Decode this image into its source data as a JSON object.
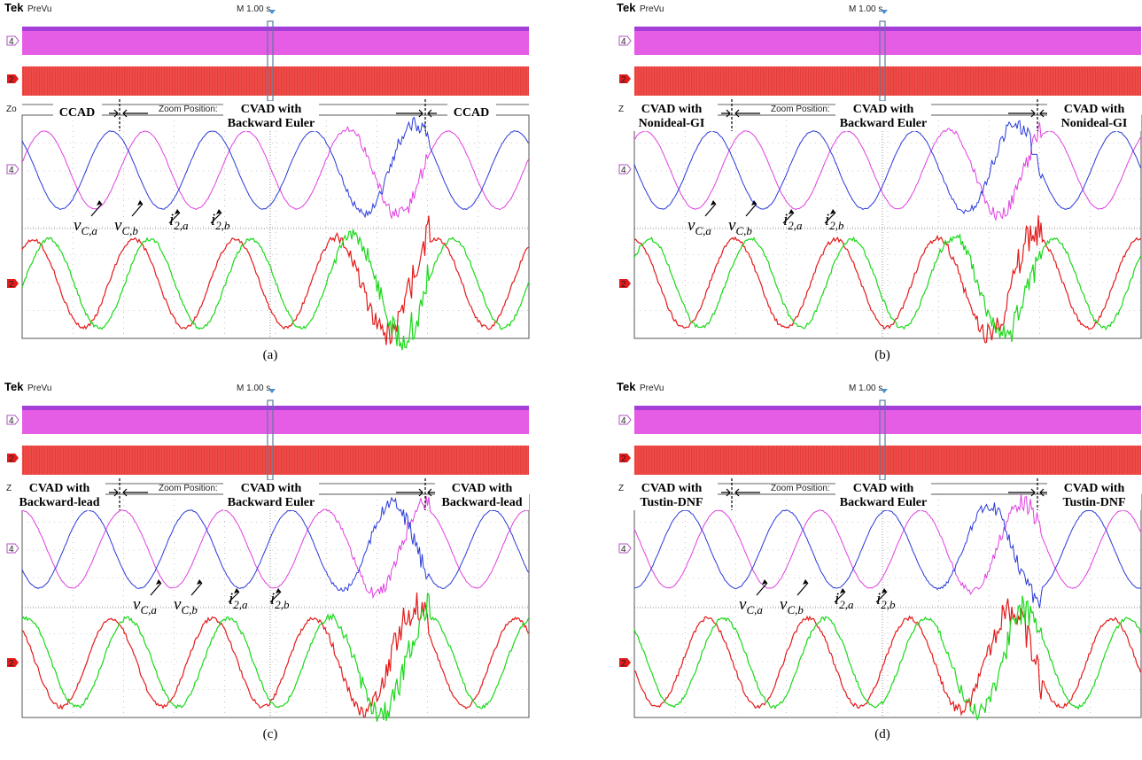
{
  "common": {
    "brand": "Tek",
    "mode": "PreVu",
    "timebase": "M 1.00 s",
    "zoom_position_label": "Zoom Position:",
    "ch4_marker": "4",
    "ch2_marker": "2",
    "zoom_prefix": "Zo",
    "middle_label_line1": "CVAD with",
    "middle_label_line2": "Backward Euler",
    "v_label": "v",
    "i_label": "i",
    "vca_sub": "C,a",
    "vcb_sub": "C,b",
    "i2a_sub": "2,a",
    "i2b_sub": "2,b"
  },
  "colors": {
    "v_a": "#e040e0",
    "v_b": "#2a3ad8",
    "i_a": "#e41a1a",
    "i_b": "#1ad81a",
    "ch4_marker": "#b050c0",
    "ch2_marker": "#e41a1a",
    "grid": "#9a9a9a",
    "cursor": "#4a90d0"
  },
  "panels": [
    {
      "caption": "(a)",
      "left_label": [
        "CCAD"
      ],
      "right_label": [
        "CCAD"
      ],
      "chart_data": {
        "type": "line",
        "series": [
          {
            "name": "v_C,a",
            "trace": "ch4"
          },
          {
            "name": "v_C,b",
            "trace": "ch4"
          },
          {
            "name": "i_2,a",
            "trace": "ch2"
          },
          {
            "name": "i_2,b",
            "trace": "ch2"
          }
        ],
        "segments": [
          "CCAD",
          "CVAD with Backward Euler",
          "CCAD"
        ],
        "oscillation_segment": 1
      }
    },
    {
      "caption": "(b)",
      "left_label": [
        "CVAD with",
        "Nonideal-GI"
      ],
      "right_label": [
        "CVAD with",
        "Nonideal-GI"
      ],
      "chart_data": {
        "type": "line",
        "series": [
          {
            "name": "v_C,a",
            "trace": "ch4"
          },
          {
            "name": "v_C,b",
            "trace": "ch4"
          },
          {
            "name": "i_2,a",
            "trace": "ch2"
          },
          {
            "name": "i_2,b",
            "trace": "ch2"
          }
        ],
        "segments": [
          "CVAD with Nonideal-GI",
          "CVAD with Backward Euler",
          "CVAD with Nonideal-GI"
        ],
        "oscillation_segment": 1
      }
    },
    {
      "caption": "(c)",
      "left_label": [
        "CVAD with",
        "Backward-lead"
      ],
      "right_label": [
        "CVAD with",
        "Backward-lead"
      ],
      "chart_data": {
        "type": "line",
        "series": [
          {
            "name": "v_C,a",
            "trace": "ch4"
          },
          {
            "name": "v_C,b",
            "trace": "ch4"
          },
          {
            "name": "i_2,a",
            "trace": "ch2"
          },
          {
            "name": "i_2,b",
            "trace": "ch2"
          }
        ],
        "segments": [
          "CVAD with Backward-lead",
          "CVAD with Backward Euler",
          "CVAD with Backward-lead"
        ],
        "oscillation_segment": 1
      }
    },
    {
      "caption": "(d)",
      "left_label": [
        "CVAD with",
        "Tustin-DNF"
      ],
      "right_label": [
        "CVAD with",
        "Tustin-DNF"
      ],
      "chart_data": {
        "type": "line",
        "series": [
          {
            "name": "v_C,a",
            "trace": "ch4"
          },
          {
            "name": "v_C,b",
            "trace": "ch4"
          },
          {
            "name": "i_2,a",
            "trace": "ch2"
          },
          {
            "name": "i_2,b",
            "trace": "ch2"
          }
        ],
        "segments": [
          "CVAD with Tustin-DNF",
          "CVAD with Backward Euler",
          "CVAD with Tustin-DNF"
        ],
        "oscillation_segment": 1
      }
    }
  ]
}
